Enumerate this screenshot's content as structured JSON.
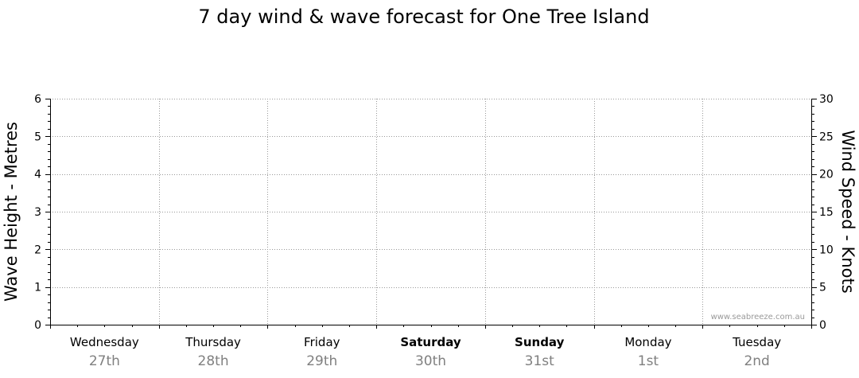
{
  "chart_data": {
    "type": "line",
    "title": "7 day wind & wave forecast for One Tree Island",
    "ylabel_left": "Wave Height - Metres",
    "ylabel_right": "Wind Speed - Knots",
    "ylim_left": [
      0,
      6
    ],
    "ylim_right": [
      0,
      30
    ],
    "yticks_left": [
      "0",
      "1",
      "2",
      "3",
      "4",
      "5",
      "6"
    ],
    "yticks_right": [
      "0",
      "5",
      "10",
      "15",
      "20",
      "25",
      "30"
    ],
    "grid": true,
    "days": [
      {
        "name": "Wednesday",
        "date": "27th",
        "bold": false
      },
      {
        "name": "Thursday",
        "date": "28th",
        "bold": false
      },
      {
        "name": "Friday",
        "date": "29th",
        "bold": false
      },
      {
        "name": "Saturday",
        "date": "30th",
        "bold": true
      },
      {
        "name": "Sunday",
        "date": "31st",
        "bold": true
      },
      {
        "name": "Monday",
        "date": "1st",
        "bold": false
      },
      {
        "name": "Tuesday",
        "date": "2nd",
        "bold": false
      }
    ],
    "series": [],
    "watermark": "www.seabreeze.com.au"
  }
}
